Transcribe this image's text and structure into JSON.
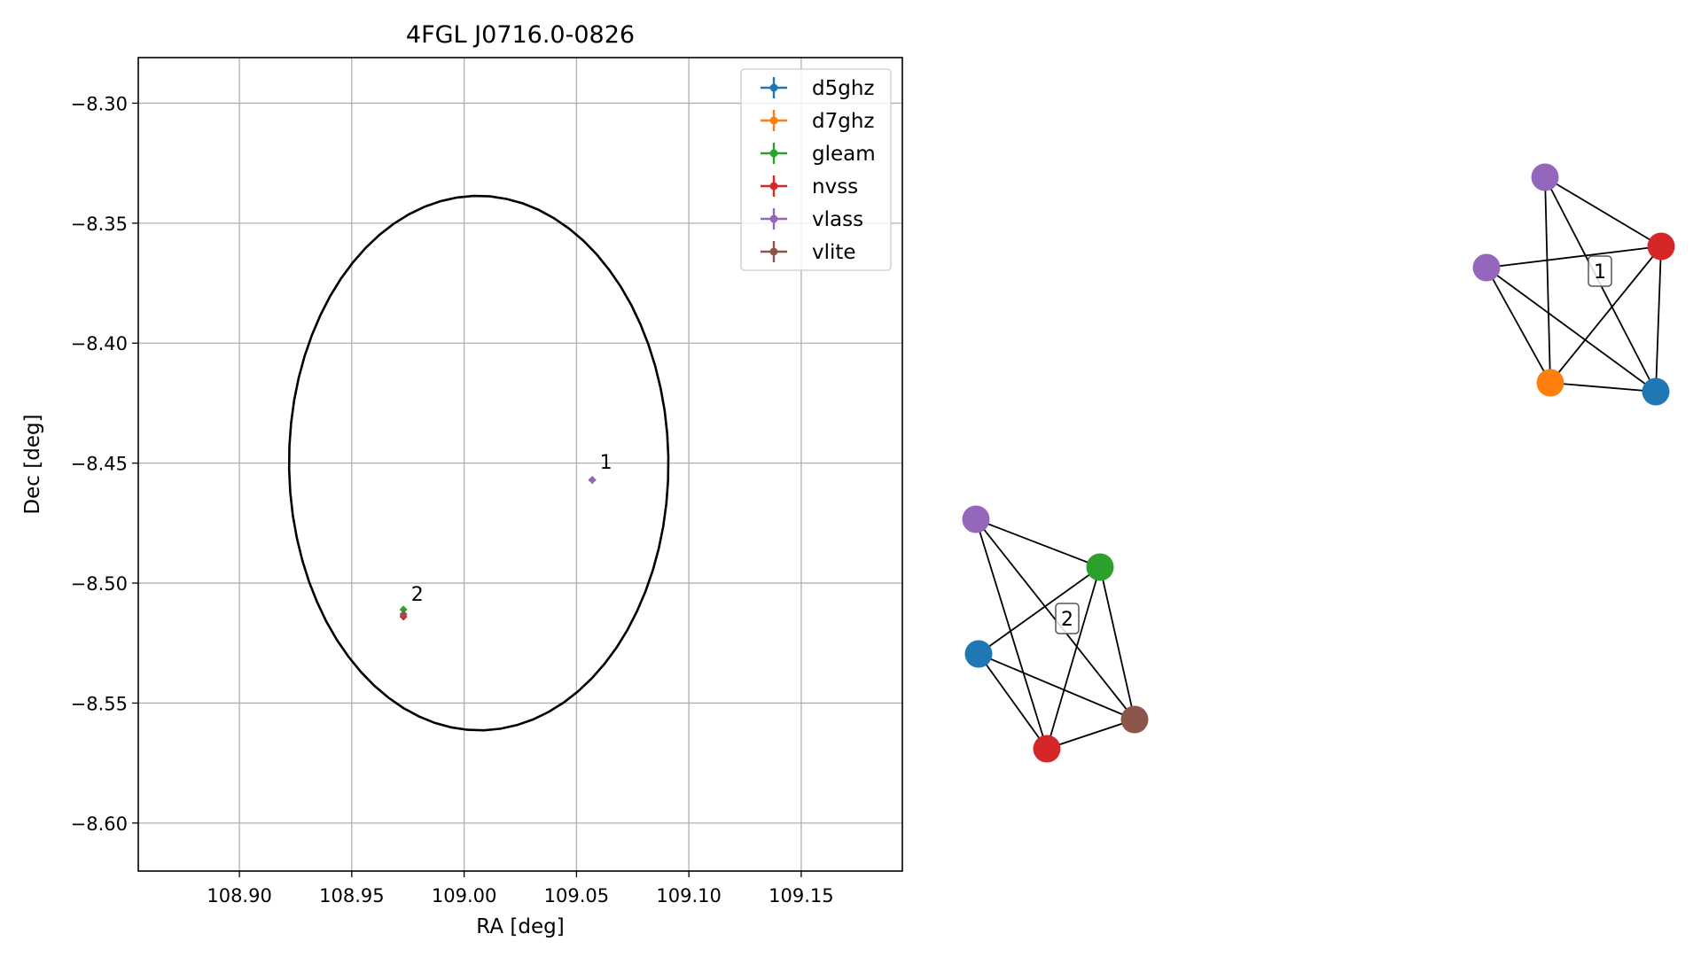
{
  "chart_data": [
    {
      "type": "scatter",
      "title": "4FGL J0716.0-0826",
      "xlabel": "RA [deg]",
      "ylabel": "Dec [deg]",
      "xlim": [
        108.855,
        109.195
      ],
      "ylim": [
        -8.62,
        -8.281
      ],
      "xticks": [
        108.9,
        108.95,
        109.0,
        109.05,
        109.1,
        109.15
      ],
      "xtick_labels": [
        "108.90",
        "108.95",
        "109.00",
        "109.05",
        "109.10",
        "109.15"
      ],
      "yticks": [
        -8.3,
        -8.35,
        -8.4,
        -8.45,
        -8.5,
        -8.55,
        -8.6
      ],
      "ytick_labels": [
        "−8.30",
        "−8.35",
        "−8.40",
        "−8.45",
        "−8.50",
        "−8.55",
        "−8.60"
      ],
      "grid": true,
      "legend_position": "top-right",
      "series": [
        {
          "name": "d5ghz",
          "color": "#1f77b4",
          "points": [
            {
              "ra": 109.057,
              "dec": -8.457
            }
          ]
        },
        {
          "name": "d7ghz",
          "color": "#ff7f0e",
          "points": [
            {
              "ra": 109.057,
              "dec": -8.457
            }
          ]
        },
        {
          "name": "gleam",
          "color": "#2ca02c",
          "points": [
            {
              "ra": 108.973,
              "dec": -8.511
            }
          ]
        },
        {
          "name": "nvss",
          "color": "#d62728",
          "points": [
            {
              "ra": 109.057,
              "dec": -8.457
            },
            {
              "ra": 108.973,
              "dec": -8.514
            }
          ]
        },
        {
          "name": "vlass",
          "color": "#9467bd",
          "points": [
            {
              "ra": 109.057,
              "dec": -8.457
            },
            {
              "ra": 108.973,
              "dec": -8.513
            }
          ]
        },
        {
          "name": "vlite",
          "color": "#8c564b",
          "points": [
            {
              "ra": 108.973,
              "dec": -8.513
            }
          ]
        }
      ],
      "annotations": [
        {
          "text": "1",
          "ra": 109.058,
          "dec": -8.4545
        },
        {
          "text": "2",
          "ra": 108.974,
          "dec": -8.5095
        }
      ],
      "ellipse": {
        "center_ra": 109.0065,
        "center_dec": -8.45,
        "semi_axis_ra": 0.0845,
        "semi_axis_dec": 0.1115,
        "tilt_deg": 3,
        "color": "#000000"
      }
    },
    {
      "type": "network",
      "groups": [
        {
          "label": "1",
          "nodes": [
            {
              "id": "vlass_top",
              "catalog": "vlass",
              "color": "#9467bd"
            },
            {
              "id": "vlass_left",
              "catalog": "vlass",
              "color": "#9467bd"
            },
            {
              "id": "nvss",
              "catalog": "nvss",
              "color": "#d62728"
            },
            {
              "id": "d7ghz",
              "catalog": "d7ghz",
              "color": "#ff7f0e"
            },
            {
              "id": "d5ghz",
              "catalog": "d5ghz",
              "color": "#1f77b4"
            }
          ],
          "edges": [
            [
              "vlass_top",
              "nvss"
            ],
            [
              "vlass_top",
              "d7ghz"
            ],
            [
              "vlass_top",
              "d5ghz"
            ],
            [
              "vlass_left",
              "nvss"
            ],
            [
              "vlass_left",
              "d7ghz"
            ],
            [
              "vlass_left",
              "d5ghz"
            ],
            [
              "nvss",
              "d7ghz"
            ],
            [
              "nvss",
              "d5ghz"
            ],
            [
              "d7ghz",
              "d5ghz"
            ]
          ]
        },
        {
          "label": "2",
          "nodes": [
            {
              "id": "vlass",
              "catalog": "vlass",
              "color": "#9467bd"
            },
            {
              "id": "gleam",
              "catalog": "gleam",
              "color": "#2ca02c"
            },
            {
              "id": "d5ghz",
              "catalog": "d5ghz",
              "color": "#1f77b4"
            },
            {
              "id": "nvss",
              "catalog": "nvss",
              "color": "#d62728"
            },
            {
              "id": "vlite",
              "catalog": "vlite",
              "color": "#8c564b"
            }
          ],
          "edges": [
            [
              "vlass",
              "gleam"
            ],
            [
              "vlass",
              "nvss"
            ],
            [
              "vlass",
              "vlite"
            ],
            [
              "gleam",
              "d5ghz"
            ],
            [
              "gleam",
              "nvss"
            ],
            [
              "gleam",
              "vlite"
            ],
            [
              "d5ghz",
              "nvss"
            ],
            [
              "d5ghz",
              "vlite"
            ],
            [
              "nvss",
              "vlite"
            ]
          ]
        }
      ]
    }
  ]
}
